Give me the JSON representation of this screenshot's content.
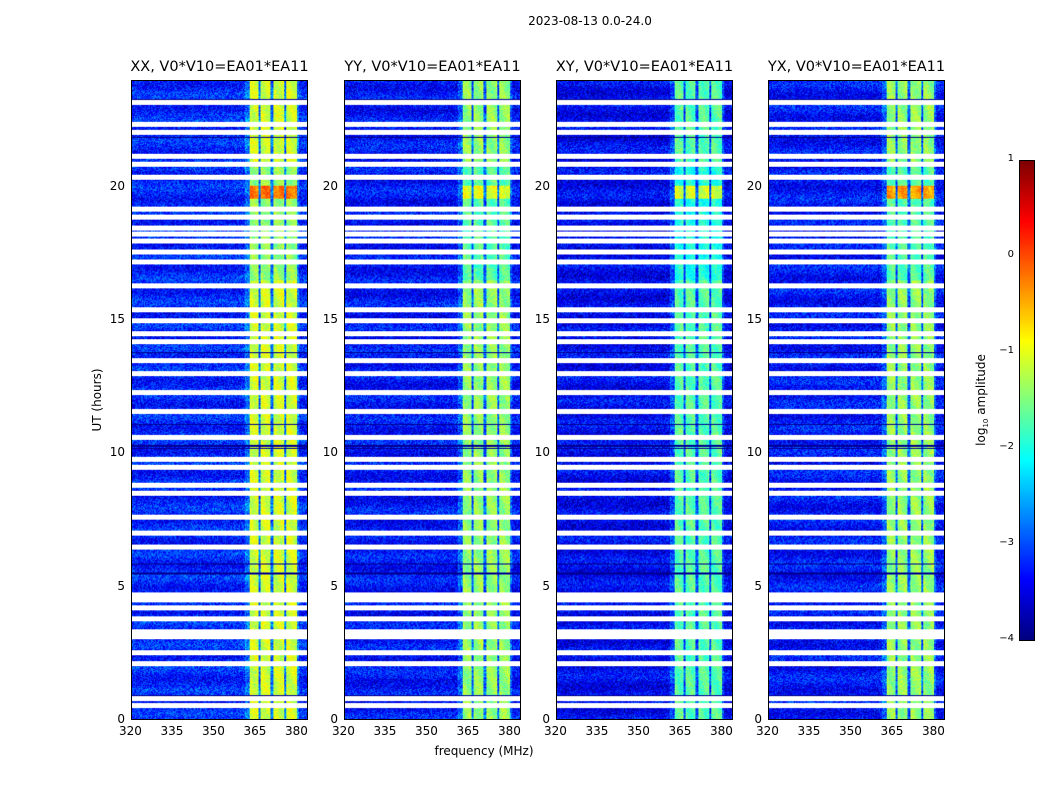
{
  "chart_data": {
    "type": "heatmap",
    "title": "2023-08-13 0.0-24.0",
    "xlabel": "frequency (MHz)",
    "ylabel": "UT (hours)",
    "xlim": [
      320,
      384
    ],
    "ylim": [
      0,
      24
    ],
    "xticks": [
      "320",
      "335",
      "350",
      "365",
      "380"
    ],
    "yticks": [
      "0",
      "5",
      "10",
      "15",
      "20"
    ],
    "colorbar": {
      "label_prefix": "log",
      "label_sub": "10",
      "label_suffix": " amplitude",
      "range": [
        -4,
        1
      ],
      "ticks": [
        "1",
        "0",
        "−1",
        "−2",
        "−3",
        "−4"
      ],
      "colormap": "jet"
    },
    "panels": [
      {
        "title": "XX, V0*V10=EA01*EA11",
        "background": -3.2,
        "band_level": -1.1,
        "band_20h_level": 0.1
      },
      {
        "title": "YY, V0*V10=EA01*EA11",
        "background": -3.3,
        "band_level": -1.4,
        "band_20h_level": -0.7
      },
      {
        "title": "XY, V0*V10=EA01*EA11",
        "background": -3.4,
        "band_level": -1.7,
        "band_20h_level": -0.8
      },
      {
        "title": "YX, V0*V10=EA01*EA11",
        "background": -3.3,
        "band_level": -1.4,
        "band_20h_level": -0.1
      }
    ],
    "rfi_band_columns_mhz": [
      [
        363,
        366.2
      ],
      [
        366.8,
        370.6
      ],
      [
        371.4,
        375.6
      ],
      [
        376.4,
        380.2
      ]
    ],
    "flagged_hours": [
      0.52,
      0.8,
      2.1,
      2.5,
      3.1,
      3.3,
      3.8,
      4.2,
      4.5,
      4.7,
      6.5,
      7.0,
      7.6,
      8.5,
      8.8,
      9.5,
      9.8,
      10.6,
      11.6,
      12.3,
      13.0,
      13.5,
      14.2,
      14.5,
      15.0,
      15.4,
      16.3,
      17.2,
      17.6,
      18.0,
      18.25,
      18.5,
      18.9,
      19.2,
      20.4,
      20.9,
      21.2,
      22.1,
      22.4,
      23.2
    ],
    "dropout_hours": [
      0.9,
      5.5,
      5.85,
      10.2,
      10.3,
      11.1,
      13.8,
      21.9,
      23.3
    ]
  }
}
